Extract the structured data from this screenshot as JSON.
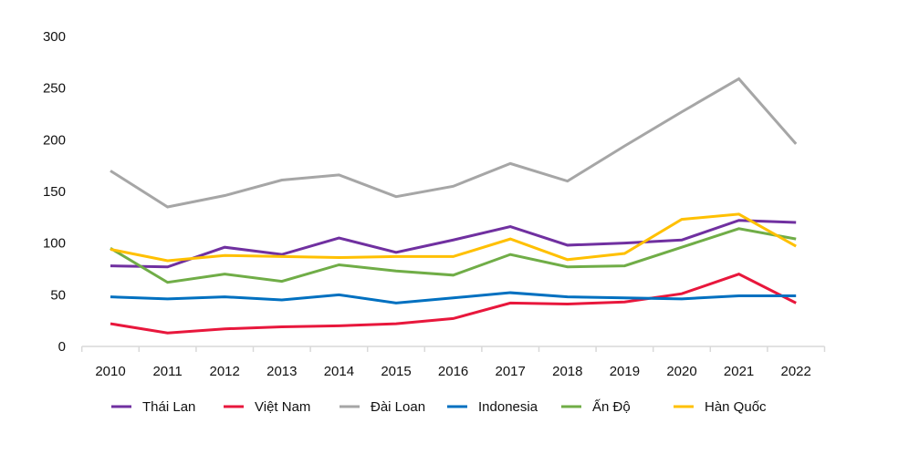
{
  "chart_data": {
    "type": "line",
    "categories": [
      "2010",
      "2011",
      "2012",
      "2013",
      "2014",
      "2015",
      "2016",
      "2017",
      "2018",
      "2019",
      "2020",
      "2021",
      "2022"
    ],
    "ylim": [
      0,
      300
    ],
    "yticks": [
      0,
      50,
      100,
      150,
      200,
      250,
      300
    ],
    "grid": false,
    "legend": "bottom",
    "series": [
      {
        "name": "Thái Lan",
        "color": "#7030A0",
        "values": [
          78,
          77,
          96,
          89,
          105,
          91,
          103,
          116,
          98,
          100,
          103,
          122,
          120
        ]
      },
      {
        "name": "Việt Nam",
        "color": "#E8173C",
        "values": [
          22,
          13,
          17,
          19,
          20,
          22,
          27,
          42,
          41,
          43,
          51,
          70,
          42
        ]
      },
      {
        "name": "Đài Loan",
        "color": "#A6A6A6",
        "values": [
          170,
          135,
          146,
          161,
          166,
          145,
          155,
          177,
          160,
          194,
          227,
          259,
          196
        ]
      },
      {
        "name": "Indonesia",
        "color": "#0070C0",
        "values": [
          48,
          46,
          48,
          45,
          50,
          42,
          47,
          52,
          48,
          47,
          46,
          49,
          49
        ]
      },
      {
        "name": "Ấn Độ",
        "color": "#70AD47",
        "values": [
          95,
          62,
          70,
          63,
          79,
          73,
          69,
          89,
          77,
          78,
          96,
          114,
          104
        ]
      },
      {
        "name": "Hàn Quốc",
        "color": "#FFC000",
        "values": [
          94,
          83,
          88,
          87,
          86,
          87,
          87,
          104,
          84,
          90,
          123,
          128,
          97
        ]
      }
    ]
  }
}
